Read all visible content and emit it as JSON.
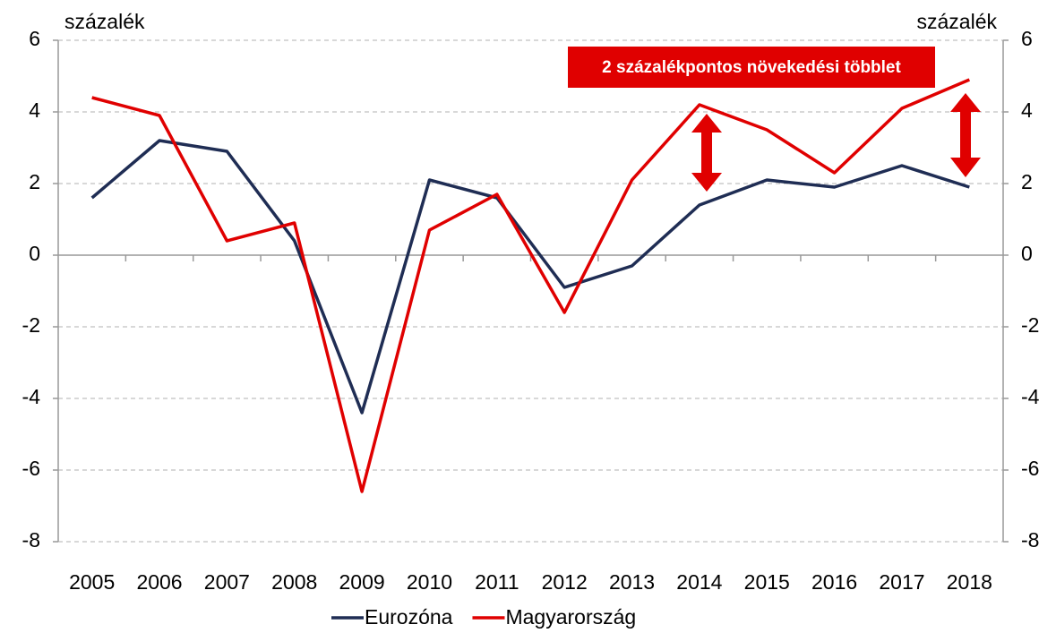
{
  "chart_data": {
    "type": "line",
    "y_label": "százalék",
    "y2_label": "százalék",
    "annotation": "2 százalékpontos növekedési többlet",
    "categories": [
      "2005",
      "2006",
      "2007",
      "2008",
      "2009",
      "2010",
      "2011",
      "2012",
      "2013",
      "2014",
      "2015",
      "2016",
      "2017",
      "2018"
    ],
    "series": [
      {
        "name": "Eurozóna",
        "color": "#1f2d54",
        "values": [
          1.6,
          3.2,
          2.9,
          0.4,
          -4.4,
          2.1,
          1.6,
          -0.9,
          -0.3,
          1.4,
          2.1,
          1.9,
          2.5,
          1.9
        ]
      },
      {
        "name": "Magyarország",
        "color": "#e00000",
        "values": [
          4.4,
          3.9,
          0.4,
          0.9,
          -6.6,
          0.7,
          1.7,
          -1.6,
          2.1,
          4.2,
          3.5,
          2.3,
          4.1,
          4.9
        ]
      }
    ],
    "ylim": [
      -8,
      6
    ],
    "yticks": [
      -8,
      -6,
      -4,
      -2,
      0,
      2,
      4,
      6
    ],
    "y2lim": [
      -8,
      6
    ],
    "y2ticks": [
      -8,
      -6,
      -4,
      -2,
      0,
      2,
      4,
      6
    ],
    "grid": true,
    "legend": "bottom"
  }
}
